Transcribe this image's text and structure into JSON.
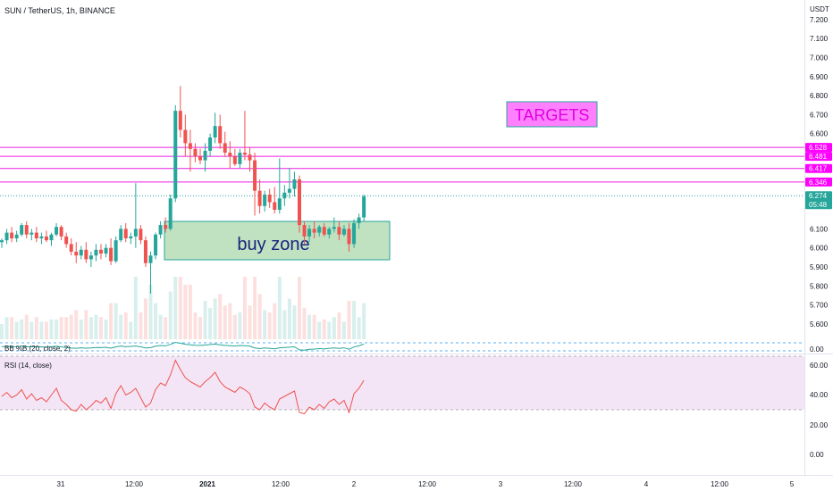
{
  "header": {
    "symbol_title": "SUN / TetherUS, 1h, BINANCE",
    "currency": "USDT"
  },
  "colors": {
    "up": "#26a69a",
    "down": "#ef5350",
    "target_line": "#e91ee3",
    "target_tag": "#ff00ff",
    "price_line": "#26a69a",
    "buy_zone_fill": "#a5d6a7",
    "buy_zone_border": "#26a69a",
    "rsi_line": "#ef5350",
    "rsi_band": "#f3e5f5",
    "bbp_line": "#26a69a"
  },
  "annotations": {
    "targets_label": "TARGETS",
    "buy_zone_label": "buy zone"
  },
  "indicators": {
    "bbp_label": "BB %B (20, close, 2)",
    "rsi_label": "RSI (14, close)"
  },
  "chart_data": {
    "type": "candlestick",
    "ylim": [
      5.52,
      7.26
    ],
    "y_ticks": [
      "7.200",
      "7.100",
      "7.000",
      "6.900",
      "6.800",
      "6.700",
      "6.600",
      "6.100",
      "6.000",
      "5.900",
      "5.800",
      "5.700",
      "5.600"
    ],
    "x_ticks": [
      "31",
      "12:00",
      "2021",
      "12:00",
      "2",
      "12:00",
      "3",
      "12:00",
      "4",
      "12:00",
      "5"
    ],
    "target_levels": [
      "6.528",
      "6.481",
      "6.417",
      "6.346"
    ],
    "current_price": "6.274",
    "countdown": "05:48",
    "buy_zone": {
      "top": 6.16,
      "bottom": 5.96
    },
    "candles": [
      [
        6.03,
        6.05,
        6.0,
        6.04
      ],
      [
        6.04,
        6.1,
        6.02,
        6.08
      ],
      [
        6.08,
        6.11,
        6.03,
        6.05
      ],
      [
        6.05,
        6.09,
        6.03,
        6.07
      ],
      [
        6.07,
        6.13,
        6.06,
        6.12
      ],
      [
        6.12,
        6.14,
        6.05,
        6.07
      ],
      [
        6.07,
        6.1,
        6.04,
        6.08
      ],
      [
        6.08,
        6.11,
        6.03,
        6.05
      ],
      [
        6.05,
        6.08,
        6.02,
        6.06
      ],
      [
        6.06,
        6.09,
        6.03,
        6.04
      ],
      [
        6.04,
        6.08,
        6.01,
        6.07
      ],
      [
        6.07,
        6.13,
        6.06,
        6.11
      ],
      [
        6.11,
        6.12,
        6.04,
        6.06
      ],
      [
        6.06,
        6.08,
        6.0,
        6.02
      ],
      [
        6.02,
        6.05,
        5.96,
        5.98
      ],
      [
        5.98,
        6.03,
        5.92,
        5.96
      ],
      [
        5.96,
        6.01,
        5.94,
        5.99
      ],
      [
        5.99,
        6.03,
        5.92,
        5.94
      ],
      [
        5.94,
        5.98,
        5.9,
        5.96
      ],
      [
        5.96,
        6.02,
        5.93,
        5.99
      ],
      [
        5.99,
        6.02,
        5.94,
        5.97
      ],
      [
        5.97,
        6.02,
        5.95,
        6.0
      ],
      [
        6.0,
        6.05,
        5.91,
        5.93
      ],
      [
        5.93,
        6.06,
        5.92,
        6.04
      ],
      [
        6.04,
        6.12,
        6.03,
        6.1
      ],
      [
        6.1,
        6.13,
        6.03,
        6.05
      ],
      [
        6.05,
        6.08,
        6.02,
        6.06
      ],
      [
        6.06,
        6.34,
        6.0,
        6.1
      ],
      [
        6.1,
        6.12,
        6.02,
        6.04
      ],
      [
        6.04,
        6.06,
        5.9,
        5.92
      ],
      [
        5.92,
        5.98,
        5.76,
        5.96
      ],
      [
        5.96,
        6.08,
        5.94,
        6.07
      ],
      [
        6.07,
        6.14,
        6.05,
        6.12
      ],
      [
        6.12,
        6.16,
        6.08,
        6.1
      ],
      [
        6.1,
        6.28,
        6.09,
        6.26
      ],
      [
        6.26,
        6.75,
        6.24,
        6.72
      ],
      [
        6.72,
        6.85,
        6.58,
        6.62
      ],
      [
        6.62,
        6.7,
        6.48,
        6.55
      ],
      [
        6.55,
        6.62,
        6.4,
        6.52
      ],
      [
        6.52,
        6.55,
        6.45,
        6.48
      ],
      [
        6.48,
        6.52,
        6.44,
        6.46
      ],
      [
        6.46,
        6.55,
        6.4,
        6.51
      ],
      [
        6.51,
        6.6,
        6.48,
        6.58
      ],
      [
        6.58,
        6.71,
        6.55,
        6.64
      ],
      [
        6.64,
        6.7,
        6.52,
        6.55
      ],
      [
        6.55,
        6.61,
        6.48,
        6.5
      ],
      [
        6.5,
        6.56,
        6.42,
        6.48
      ],
      [
        6.48,
        6.52,
        6.43,
        6.44
      ],
      [
        6.44,
        6.52,
        6.42,
        6.5
      ],
      [
        6.5,
        6.72,
        6.46,
        6.49
      ],
      [
        6.49,
        6.53,
        6.4,
        6.46
      ],
      [
        6.46,
        6.5,
        6.17,
        6.3
      ],
      [
        6.3,
        6.36,
        6.18,
        6.22
      ],
      [
        6.22,
        6.3,
        6.19,
        6.28
      ],
      [
        6.28,
        6.31,
        6.21,
        6.24
      ],
      [
        6.24,
        6.32,
        6.18,
        6.2
      ],
      [
        6.2,
        6.47,
        6.18,
        6.26
      ],
      [
        6.26,
        6.33,
        6.22,
        6.29
      ],
      [
        6.29,
        6.42,
        6.26,
        6.31
      ],
      [
        6.31,
        6.4,
        6.27,
        6.36
      ],
      [
        6.36,
        6.38,
        6.08,
        6.12
      ],
      [
        6.12,
        6.14,
        6.02,
        6.06
      ],
      [
        6.06,
        6.12,
        6.03,
        6.1
      ],
      [
        6.1,
        6.14,
        6.05,
        6.08
      ],
      [
        6.08,
        6.12,
        6.06,
        6.11
      ],
      [
        6.11,
        6.13,
        6.06,
        6.07
      ],
      [
        6.07,
        6.11,
        6.05,
        6.1
      ],
      [
        6.1,
        6.16,
        6.08,
        6.11
      ],
      [
        6.11,
        6.14,
        6.04,
        6.07
      ],
      [
        6.07,
        6.12,
        6.06,
        6.1
      ],
      [
        6.1,
        6.13,
        5.98,
        6.02
      ],
      [
        6.02,
        6.15,
        6.0,
        6.13
      ],
      [
        6.13,
        6.18,
        6.1,
        6.16
      ],
      [
        6.16,
        6.28,
        6.14,
        6.27
      ]
    ],
    "bbp_values": [
      0.52,
      0.55,
      0.5,
      0.52,
      0.58,
      0.5,
      0.53,
      0.48,
      0.5,
      0.47,
      0.52,
      0.58,
      0.48,
      0.42,
      0.35,
      0.32,
      0.38,
      0.33,
      0.36,
      0.42,
      0.4,
      0.45,
      0.34,
      0.5,
      0.6,
      0.52,
      0.55,
      0.6,
      0.5,
      0.36,
      0.4,
      0.58,
      0.66,
      0.62,
      0.8,
      1.05,
      0.95,
      0.82,
      0.75,
      0.7,
      0.68,
      0.72,
      0.78,
      0.85,
      0.74,
      0.68,
      0.64,
      0.6,
      0.66,
      0.64,
      0.6,
      0.36,
      0.28,
      0.36,
      0.3,
      0.25,
      0.38,
      0.42,
      0.46,
      0.5,
      0.12,
      0.08,
      0.2,
      0.22,
      0.28,
      0.24,
      0.32,
      0.36,
      0.3,
      0.38,
      0.2,
      0.48,
      0.62,
      0.85
    ],
    "rsi_values": [
      50,
      53,
      49,
      51,
      55,
      48,
      52,
      47,
      49,
      46,
      51,
      56,
      47,
      44,
      40,
      39,
      44,
      40,
      43,
      47,
      45,
      49,
      41,
      52,
      58,
      51,
      53,
      56,
      49,
      42,
      45,
      55,
      60,
      58,
      66,
      77,
      70,
      64,
      61,
      59,
      57,
      61,
      64,
      68,
      61,
      57,
      55,
      53,
      57,
      55,
      52,
      42,
      40,
      45,
      42,
      40,
      48,
      50,
      52,
      54,
      38,
      37,
      42,
      40,
      44,
      41,
      46,
      48,
      44,
      47,
      38,
      52,
      56,
      62
    ],
    "rsi_ticks": [
      "60.00",
      "40.00",
      "20.00",
      "0.00"
    ],
    "bbp_ticks": [
      "0.00"
    ]
  }
}
